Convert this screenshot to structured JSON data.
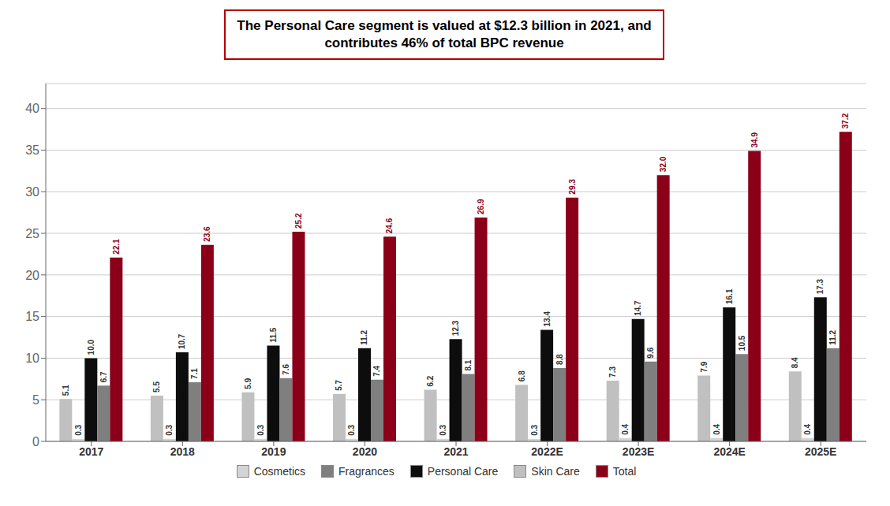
{
  "chart_data": {
    "type": "bar",
    "title": "The Personal Care segment is valued at $12.3 billion in 2021, and\ncontributes 46% of total BPC revenue",
    "categories": [
      "2017",
      "2018",
      "2019",
      "2020",
      "2021",
      "2022E",
      "2023E",
      "2024E",
      "2025E"
    ],
    "series": [
      {
        "name": "Skin Care",
        "color": "#c0c0c0",
        "values": [
          5.1,
          5.5,
          5.9,
          5.7,
          6.2,
          6.8,
          7.3,
          7.9,
          8.4
        ],
        "value_labels": [
          "5.1",
          "5.5",
          "5.9",
          "5.7",
          "6.2",
          "6.8",
          "7.3",
          "7.9",
          "8.4"
        ]
      },
      {
        "name": "Cosmetics",
        "color": "#d4d4d4",
        "values": [
          0.3,
          0.3,
          0.3,
          0.3,
          0.3,
          0.3,
          0.4,
          0.4,
          0.4
        ],
        "value_labels": [
          "0.3",
          "0.3",
          "0.3",
          "0.3",
          "0.3",
          "0.3",
          "0.4",
          "0.4",
          "0.4"
        ]
      },
      {
        "name": "Personal Care",
        "color": "#0d0d0d",
        "values": [
          10.0,
          10.7,
          11.5,
          11.2,
          12.3,
          13.4,
          14.7,
          16.1,
          17.3
        ],
        "value_labels": [
          "10.0",
          "10.7",
          "11.5",
          "11.2",
          "12.3",
          "13.4",
          "14.7",
          "16.1",
          "17.3"
        ]
      },
      {
        "name": "Fragrances",
        "color": "#7f7f7f",
        "values": [
          6.7,
          7.1,
          7.6,
          7.4,
          8.1,
          8.8,
          9.6,
          10.5,
          11.2
        ],
        "value_labels": [
          "6.7",
          "7.1",
          "7.6",
          "7.4",
          "8.1",
          "8.8",
          "9.6",
          "10.5",
          "11.2"
        ]
      },
      {
        "name": "Total",
        "color": "#8b0018",
        "values": [
          22.1,
          23.6,
          25.2,
          24.6,
          26.9,
          29.3,
          32.0,
          34.9,
          37.2
        ],
        "value_labels": [
          "22.1",
          "23.6",
          "25.2",
          "24.6",
          "26.9",
          "29.3",
          "32.0",
          "34.9",
          "37.2"
        ]
      }
    ],
    "ylim": [
      0,
      43
    ],
    "yticks": [
      0,
      5,
      10,
      15,
      20,
      25,
      30,
      35,
      40
    ],
    "grid": true,
    "legend": "bottom",
    "data_labels": true
  }
}
